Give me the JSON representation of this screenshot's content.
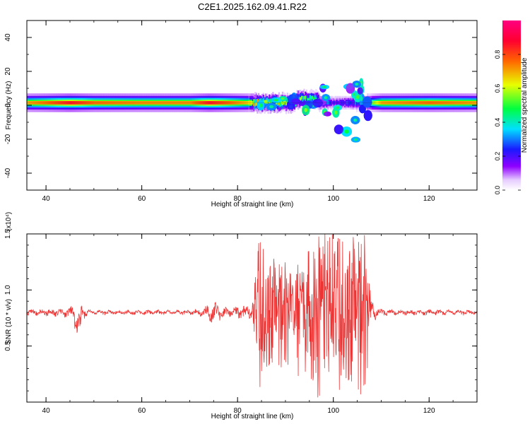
{
  "title": "C2E1.2025.162.09.41.R22",
  "colors": {
    "signal": "#ee3333",
    "axis": "#000000"
  },
  "chart_data": [
    {
      "type": "heatmap",
      "xlabel": "Height of straight line (km)",
      "ylabel": "Frequency (Hz)",
      "xlim": [
        36,
        130
      ],
      "ylim": [
        -50,
        50
      ],
      "xticks": [
        "40",
        "60",
        "80",
        "100",
        "120"
      ],
      "yticks": [
        "-40",
        "-20",
        "0",
        "20",
        "40"
      ],
      "colorbar": {
        "label": "Normalized spectral amplitude",
        "range": [
          0,
          1
        ],
        "ticks": [
          "0.0",
          "0.2",
          "0.4",
          "0.6",
          "0.8"
        ],
        "colormap": "rainbow (violet-blue-cyan-green-yellow-red-magenta)"
      },
      "band_center_hz": 1.5,
      "band": [
        {
          "x": 36,
          "amp": 0.7
        },
        {
          "x": 40,
          "amp": 0.75
        },
        {
          "x": 45,
          "amp": 0.85
        },
        {
          "x": 50,
          "amp": 0.75
        },
        {
          "x": 60,
          "amp": 0.72
        },
        {
          "x": 70,
          "amp": 0.72
        },
        {
          "x": 74,
          "amp": 0.85
        },
        {
          "x": 80,
          "amp": 0.72
        },
        {
          "x": 85,
          "amp": 0.6
        },
        {
          "x": 90,
          "amp": 0.55
        },
        {
          "x": 95,
          "amp": 0.5
        },
        {
          "x": 100,
          "amp": 0.2
        },
        {
          "x": 105,
          "amp": 0.3
        },
        {
          "x": 110,
          "amp": 0.7
        },
        {
          "x": 120,
          "amp": 0.75
        },
        {
          "x": 130,
          "amp": 0.7
        }
      ]
    },
    {
      "type": "line",
      "xlabel": "Height of straight line (km)",
      "ylabel": "SNR (10 * v/v)",
      "y_multiplier": "(x10⁴)",
      "xlim": [
        36,
        130
      ],
      "ylim": [
        0,
        1.5
      ],
      "xticks": [
        "40",
        "60",
        "80",
        "100",
        "120"
      ],
      "yticks": [
        "0.5",
        "1.0",
        "1.5"
      ],
      "series": [
        {
          "baseline": 0.8,
          "envelope": [
            {
              "x": 36,
              "amp": 0.04
            },
            {
              "x": 45,
              "amp": 0.06
            },
            {
              "x": 46.5,
              "amp": 0.14
            },
            {
              "x": 49,
              "amp": 0.03
            },
            {
              "x": 70,
              "amp": 0.03
            },
            {
              "x": 73,
              "amp": 0.06
            },
            {
              "x": 75,
              "amp": 0.14
            },
            {
              "x": 78,
              "amp": 0.05
            },
            {
              "x": 83,
              "amp": 0.12
            },
            {
              "x": 84.5,
              "amp": 0.7
            },
            {
              "x": 87,
              "amp": 0.55
            },
            {
              "x": 90,
              "amp": 0.45
            },
            {
              "x": 92,
              "amp": 0.45
            },
            {
              "x": 93,
              "amp": 0.5
            },
            {
              "x": 96,
              "amp": 0.72
            },
            {
              "x": 100,
              "amp": 0.7
            },
            {
              "x": 104,
              "amp": 0.75
            },
            {
              "x": 106.5,
              "amp": 0.7
            },
            {
              "x": 108,
              "amp": 0.15
            },
            {
              "x": 110,
              "amp": 0.04
            },
            {
              "x": 130,
              "amp": 0.03
            }
          ]
        }
      ]
    }
  ]
}
